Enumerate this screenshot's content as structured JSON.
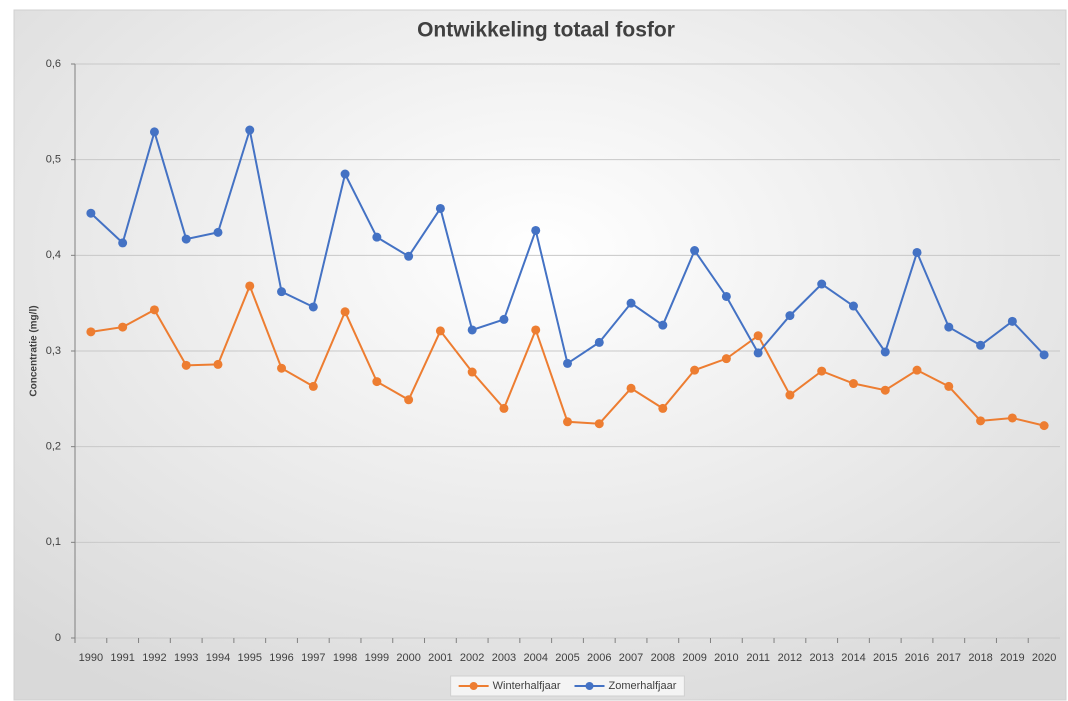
{
  "chart_data": {
    "type": "line",
    "title": "Ontwikkeling totaal fosfor",
    "y_label": "Concentratie (mg/l)",
    "categories": [
      "1990",
      "1991",
      "1992",
      "1993",
      "1994",
      "1995",
      "1996",
      "1997",
      "1998",
      "1999",
      "2000",
      "2001",
      "2002",
      "2003",
      "2004",
      "2005",
      "2006",
      "2007",
      "2008",
      "2009",
      "2010",
      "2011",
      "2012",
      "2013",
      "2014",
      "2015",
      "2016",
      "2017",
      "2018",
      "2019",
      "2020"
    ],
    "series": [
      {
        "name": "Winterhalfjaar",
        "color": "#ed7d31",
        "values": [
          0.32,
          0.325,
          0.343,
          0.285,
          0.286,
          0.368,
          0.282,
          0.263,
          0.341,
          0.268,
          0.249,
          0.321,
          0.278,
          0.24,
          0.322,
          0.226,
          0.224,
          0.261,
          0.24,
          0.28,
          0.292,
          0.316,
          0.254,
          0.279,
          0.266,
          0.259,
          0.28,
          0.263,
          0.227,
          0.23,
          0.222
        ]
      },
      {
        "name": "Zomerhalfjaar",
        "color": "#4472c4",
        "values": [
          0.444,
          0.413,
          0.529,
          0.417,
          0.424,
          0.531,
          0.362,
          0.346,
          0.485,
          0.419,
          0.399,
          0.449,
          0.322,
          0.333,
          0.426,
          0.287,
          0.309,
          0.35,
          0.327,
          0.405,
          0.357,
          0.298,
          0.337,
          0.37,
          0.347,
          0.299,
          0.403,
          0.325,
          0.306,
          0.331,
          0.296
        ]
      }
    ],
    "ylim": [
      0,
      0.6
    ],
    "yticks": [
      0,
      {
        "value": 0.1,
        "label": "0,1"
      },
      {
        "value": 0.2,
        "label": "0,2"
      },
      {
        "value": 0.3,
        "label": "0,3"
      },
      {
        "value": 0.4,
        "label": "0,4"
      },
      {
        "value": 0.5,
        "label": "0,5"
      },
      {
        "value": 0.6,
        "label": "0,6"
      }
    ],
    "grid": true,
    "legend": "bottom"
  }
}
